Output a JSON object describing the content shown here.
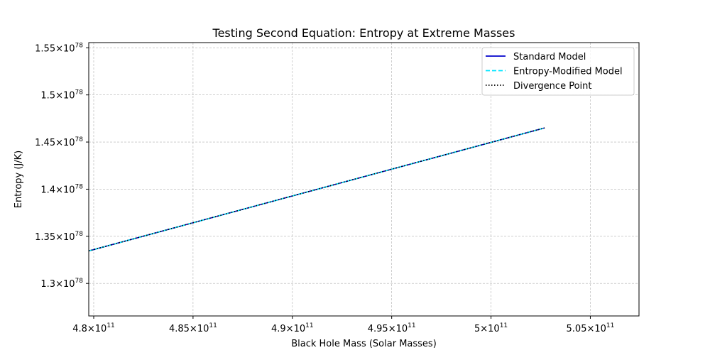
{
  "chart_data": {
    "type": "line",
    "title": "Testing Second Equation: Entropy at Extreme Masses",
    "xlabel": "Black Hole Mass (Solar Masses)",
    "ylabel": "Entropy (J/K)",
    "xlim": [
      479750000000.0,
      507450000000.0
    ],
    "ylim": [
      1.2655e+78,
      1.5555e+78
    ],
    "grid": true,
    "legend_position": "top-right",
    "x_ticks": [
      {
        "value": 480000000000.0,
        "mantissa": "4.8",
        "exp": "11"
      },
      {
        "value": 485000000000.0,
        "mantissa": "4.85",
        "exp": "11"
      },
      {
        "value": 490000000000.0,
        "mantissa": "4.9",
        "exp": "11"
      },
      {
        "value": 495000000000.0,
        "mantissa": "4.95",
        "exp": "11"
      },
      {
        "value": 500000000000.0,
        "mantissa": "5",
        "exp": "11"
      },
      {
        "value": 505000000000.0,
        "mantissa": "5.05",
        "exp": "11"
      }
    ],
    "y_ticks": [
      {
        "value": 1.3e+78,
        "mantissa": "1.3",
        "exp": "78"
      },
      {
        "value": 1.35e+78,
        "mantissa": "1.35",
        "exp": "78"
      },
      {
        "value": 1.4e+78,
        "mantissa": "1.4",
        "exp": "78"
      },
      {
        "value": 1.45e+78,
        "mantissa": "1.45",
        "exp": "78"
      },
      {
        "value": 1.5e+78,
        "mantissa": "1.5",
        "exp": "78"
      },
      {
        "value": 1.55e+78,
        "mantissa": "1.55",
        "exp": "78"
      }
    ],
    "series": [
      {
        "name": "Standard Model",
        "color": "#0000cc",
        "style": "solid",
        "x": [
          479750000000.0,
          502700000000.0
        ],
        "y": [
          1.3345e+78,
          1.465e+78
        ]
      },
      {
        "name": "Entropy-Modified Model",
        "color": "#00e5ff",
        "style": "dashed",
        "x": [
          479750000000.0,
          502700000000.0
        ],
        "y": [
          1.3345e+78,
          1.465e+78
        ]
      },
      {
        "name": "Divergence Point",
        "color": "#000000",
        "style": "dotted",
        "x": [
          479750000000.0,
          502700000000.0
        ],
        "y": [
          1.3345e+78,
          1.465e+78
        ]
      }
    ],
    "times_symbol": "×",
    "base_ten": "10"
  }
}
